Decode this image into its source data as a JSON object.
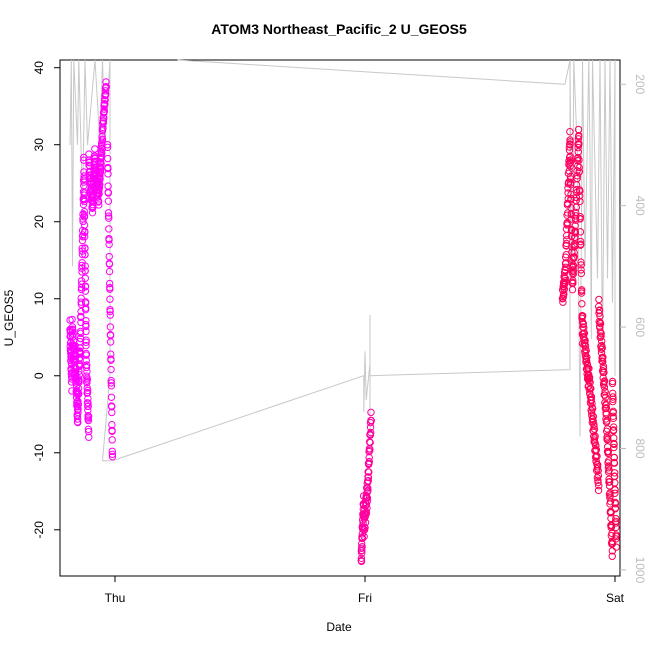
{
  "chart_data": {
    "type": "scatter",
    "title": "ATOM3 Northeast_Pacific_2 U_GEOS5",
    "xlabel": "Date",
    "ylabel": "U_GEOS5",
    "x_ticks": [
      "Thu",
      "Fri",
      "Sat"
    ],
    "ylim": [
      -26,
      41
    ],
    "y_ticks": [
      -20,
      -10,
      0,
      10,
      20,
      30,
      40
    ],
    "y2lim": [
      1010,
      160
    ],
    "y2_ticks": [
      200,
      400,
      600,
      800,
      1000
    ],
    "y2_reversed": true,
    "x_range_days": [
      -0.22,
      2.02
    ],
    "grid": false,
    "legend": "none",
    "colors": {
      "points_start": "#ff00ff",
      "points_end": "#ff0050",
      "altitude_line": "#c8c8c8"
    },
    "series": [
      {
        "marker": "open-circle",
        "x": [
          -0.18,
          -0.17,
          -0.16,
          -0.15,
          -0.14,
          -0.13,
          -0.12,
          -0.11,
          -0.1,
          -0.09,
          -0.08,
          -0.07,
          -0.06,
          -0.05,
          -0.04,
          -0.03,
          -0.02,
          -0.01,
          0.0,
          0.99,
          1.0,
          1.01,
          1.02,
          1.8,
          1.81,
          1.82,
          1.83,
          1.84,
          1.85,
          1.86,
          1.87,
          1.88,
          1.89,
          1.9,
          1.91,
          1.92,
          1.93,
          1.94,
          1.95,
          1.96,
          1.97,
          1.98,
          1.99,
          2.0
        ],
        "y": [
          6,
          2,
          4,
          0,
          -5,
          5,
          27,
          10,
          -7,
          28,
          22,
          24,
          27,
          30,
          38,
          26,
          15,
          0,
          -11,
          -24,
          -20,
          -16,
          -6,
          10,
          20,
          31,
          25,
          12,
          18,
          32,
          8,
          6,
          2,
          -2,
          -6,
          -10,
          -14,
          9,
          4,
          -2,
          -8,
          -14,
          -22,
          -1
        ]
      }
    ]
  }
}
